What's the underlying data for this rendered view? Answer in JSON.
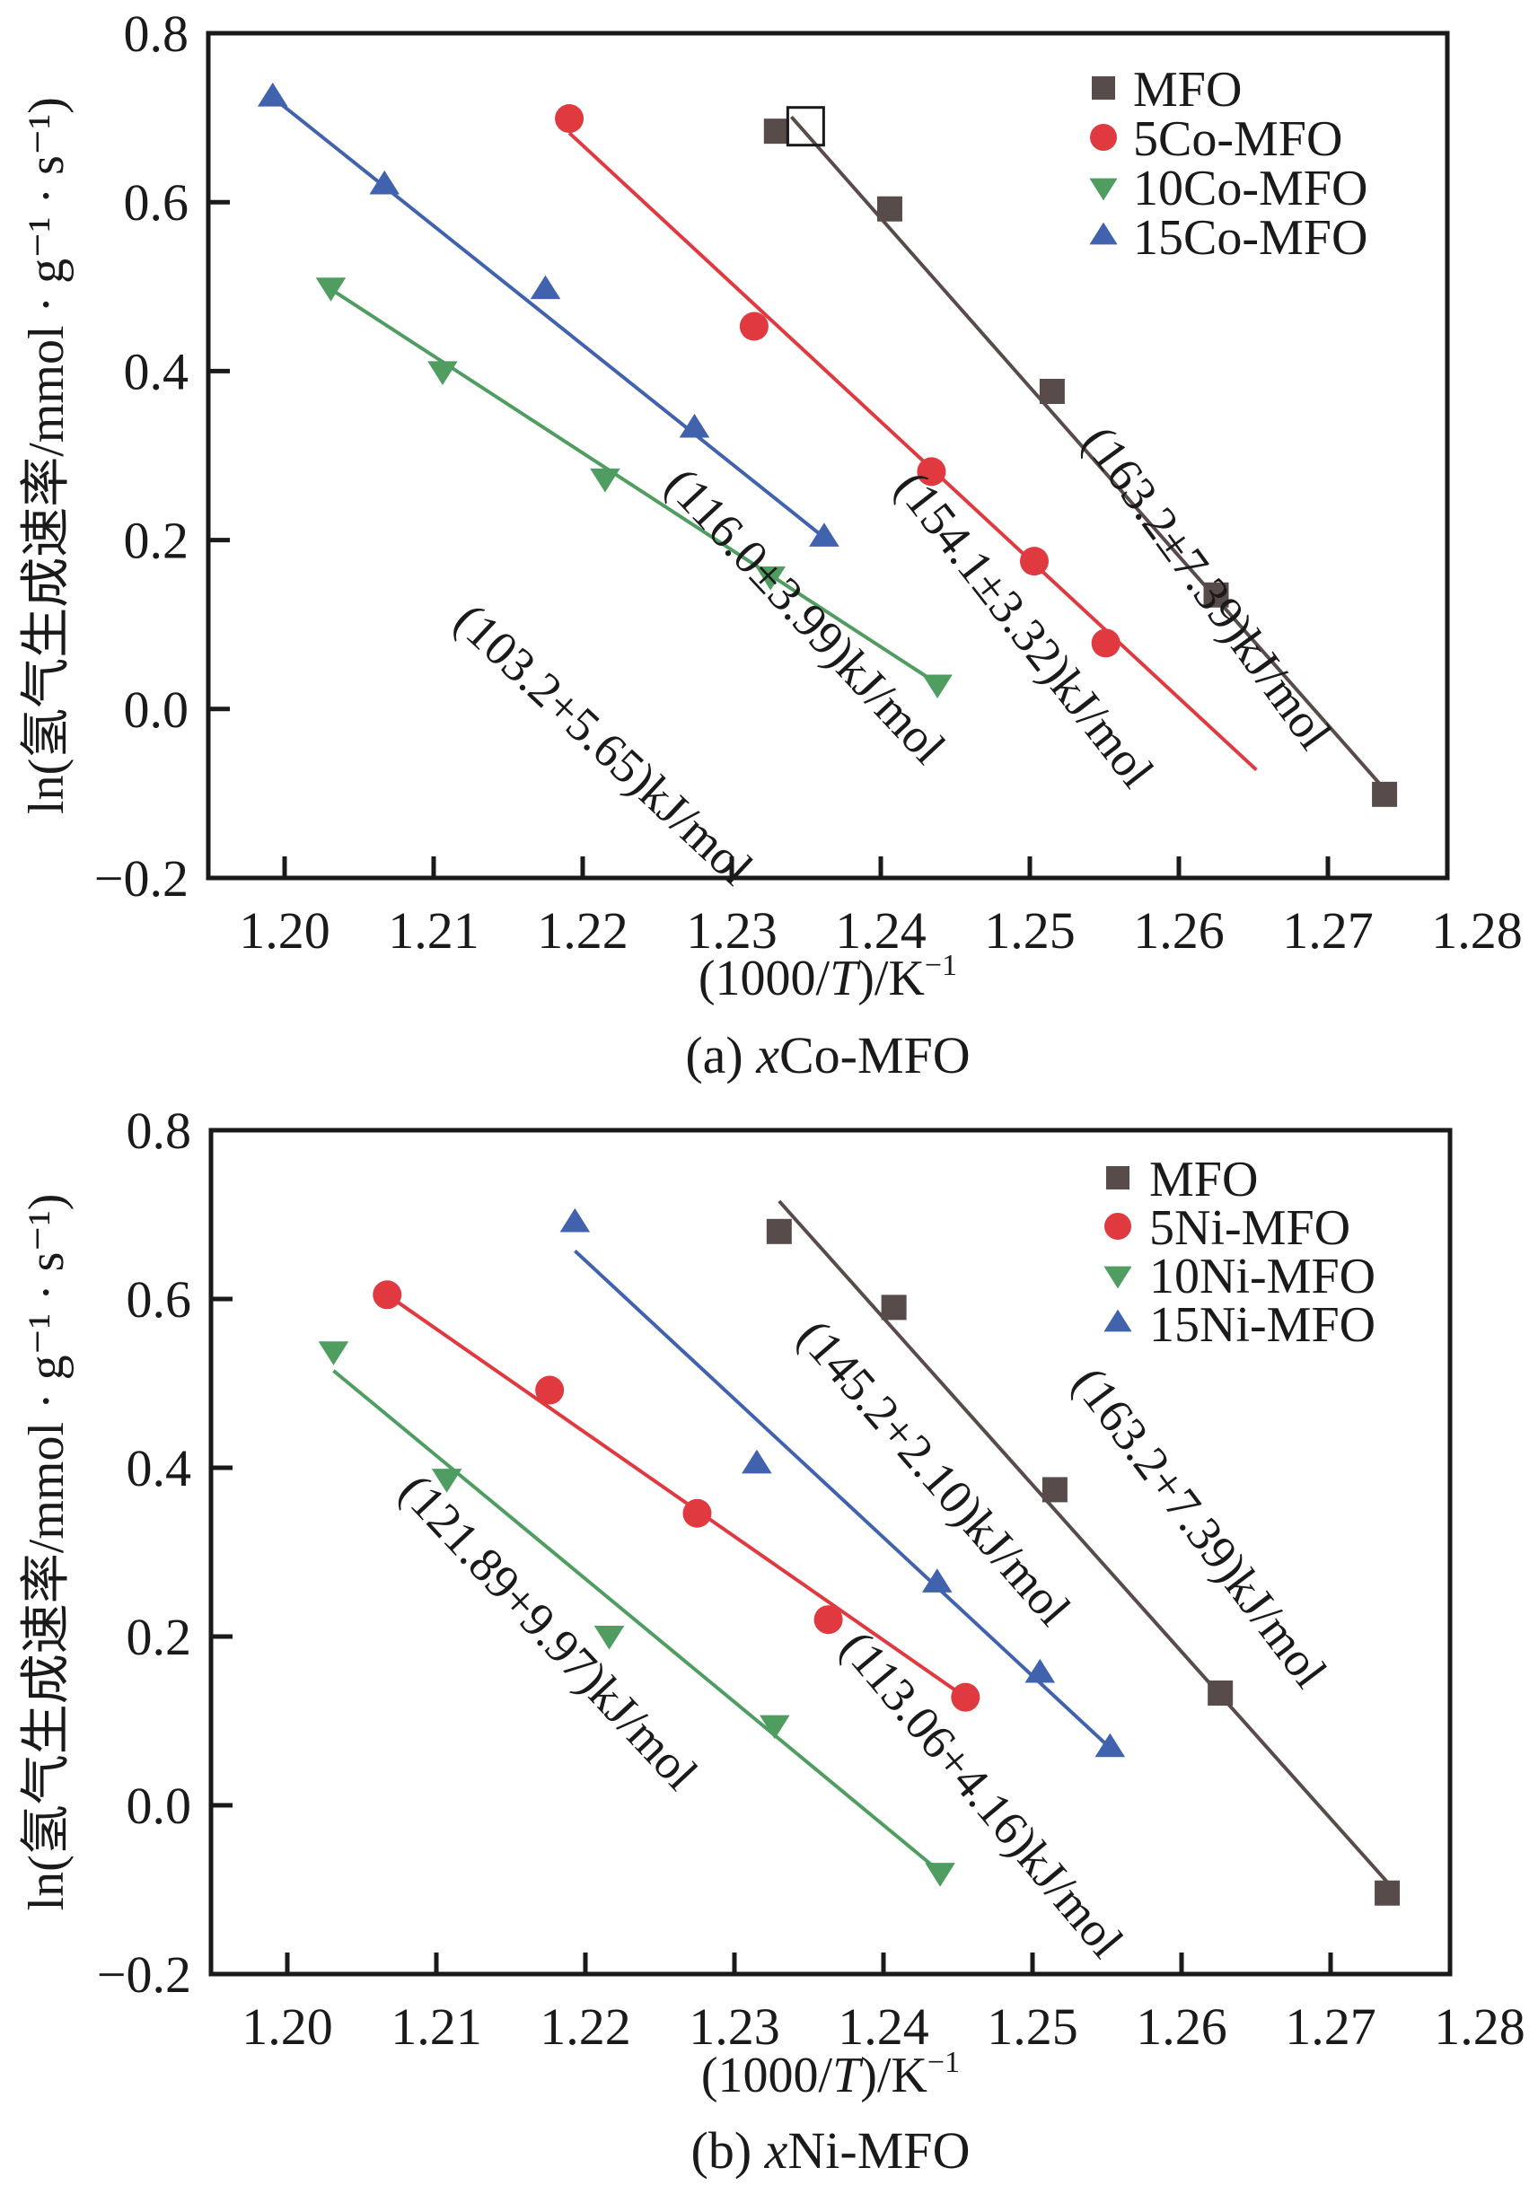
{
  "figure": {
    "colors": {
      "MFO": "#574c49",
      "red": "#e0393f",
      "green": "#4f9d61",
      "blue": "#4162ad",
      "axis": "#1a1a1a"
    }
  },
  "chart_data": [
    {
      "id": "a",
      "type": "scatter",
      "caption_prefix": "(a) ",
      "caption_italic": "x",
      "caption_suffix": "Co-MFO",
      "xlabel_parts": [
        "(1000/",
        "T",
        ")/K",
        "−1"
      ],
      "ylabel": "ln(氢气生成速率/mmol · g⁻¹ · s⁻¹)",
      "xlim": [
        1.1949,
        1.278
      ],
      "ylim": [
        -0.2,
        0.8
      ],
      "xticks": [
        "1.20",
        "1.21",
        "1.22",
        "1.23",
        "1.24",
        "1.25",
        "1.26",
        "1.27",
        "1.28"
      ],
      "yticks": [
        "−0.2",
        "0.0",
        "0.2",
        "0.4",
        "0.6",
        "0.8"
      ],
      "grid": false,
      "legend_position": "top-right",
      "series": [
        {
          "name": "MFO",
          "marker": "square",
          "color_key": "MFO",
          "x": [
            1.233,
            1.2406,
            1.2515,
            1.2625,
            1.2738
          ],
          "y": [
            0.684,
            0.592,
            0.376,
            0.135,
            -0.101
          ],
          "fit": {
            "x": [
              1.234,
              1.2735
            ],
            "y": [
              0.701,
              -0.089
            ]
          },
          "highlight_open_square": {
            "x": 1.2346,
            "y": 0.693
          },
          "annotation": "(163.2±7.39)kJ/mol"
        },
        {
          "name": "5Co-MFO",
          "marker": "circle",
          "color_key": "red",
          "x": [
            1.2191,
            1.2315,
            1.2434,
            1.2503,
            1.2551
          ],
          "y": [
            0.699,
            0.453,
            0.281,
            0.175,
            0.078
          ],
          "fit": {
            "x": [
              1.2191,
              1.2652
            ],
            "y": [
              0.682,
              -0.072
            ]
          },
          "annotation": "(154.1±3.32)kJ/mol"
        },
        {
          "name": "10Co-MFO",
          "marker": "triangle-down",
          "color_key": "green",
          "x": [
            1.2031,
            1.2106,
            1.2215,
            1.2326,
            1.2438
          ],
          "y": [
            0.5,
            0.401,
            0.274,
            0.158,
            0.03
          ],
          "fit": {
            "x": [
              1.2031,
              1.2438
            ],
            "y": [
              0.497,
              0.03
            ]
          },
          "annotation": "(103.2+5.65)kJ/mol"
        },
        {
          "name": "15Co-MFO",
          "marker": "triangle-up",
          "color_key": "blue",
          "x": [
            1.1992,
            1.2067,
            1.2175,
            1.2275,
            1.2362
          ],
          "y": [
            0.724,
            0.62,
            0.496,
            0.332,
            0.203
          ],
          "fit": {
            "x": [
              1.1992,
              1.2362
            ],
            "y": [
              0.724,
              0.203
            ]
          },
          "annotation": "(116.0±3.99)kJ/mol"
        }
      ]
    },
    {
      "id": "b",
      "type": "scatter",
      "caption_prefix": "(b) ",
      "caption_italic": "x",
      "caption_suffix": "Ni-MFO",
      "xlabel_parts": [
        "(1000/",
        "T",
        ")/K",
        "−1"
      ],
      "ylabel": "ln(氢气生成速率/mmol · g⁻¹ · s⁻¹)",
      "xlim": [
        1.1949,
        1.278
      ],
      "ylim": [
        -0.2,
        0.8
      ],
      "xticks": [
        "1.20",
        "1.21",
        "1.22",
        "1.23",
        "1.24",
        "1.25",
        "1.26",
        "1.27",
        "1.28"
      ],
      "yticks": [
        "−0.2",
        "0.0",
        "0.2",
        "0.4",
        "0.6",
        "0.8"
      ],
      "grid": false,
      "legend_position": "top-right",
      "series": [
        {
          "name": "MFO",
          "marker": "square",
          "color_key": "MFO",
          "x": [
            1.233,
            1.2407,
            1.2515,
            1.2626,
            1.2738
          ],
          "y": [
            0.68,
            0.59,
            0.374,
            0.133,
            -0.104
          ],
          "fit": {
            "x": [
              1.233,
              1.2738
            ],
            "y": [
              0.716,
              -0.091
            ]
          },
          "annotation": "(163.2+7.39)kJ/mol"
        },
        {
          "name": "5Ni-MFO",
          "marker": "circle",
          "color_key": "red",
          "x": [
            1.2067,
            1.2176,
            1.2275,
            1.2363,
            1.2455
          ],
          "y": [
            0.605,
            0.492,
            0.346,
            0.22,
            0.128
          ],
          "fit": {
            "x": [
              1.2067,
              1.2455
            ],
            "y": [
              0.605,
              0.128
            ]
          },
          "annotation": "(113.06+4.16)kJ/mol"
        },
        {
          "name": "10Ni-MFO",
          "marker": "triangle-down",
          "color_key": "green",
          "x": [
            1.2031,
            1.2107,
            1.2216,
            1.2327,
            1.2438
          ],
          "y": [
            0.539,
            0.388,
            0.202,
            0.096,
            -0.079
          ],
          "fit": {
            "x": [
              1.2031,
              1.2438
            ],
            "y": [
              0.515,
              -0.079
            ]
          },
          "annotation": "(121.89+9.97)kJ/mol"
        },
        {
          "name": "15Ni-MFO",
          "marker": "triangle-up",
          "color_key": "blue",
          "x": [
            1.2193,
            1.2315,
            1.2436,
            1.2505,
            1.2552
          ],
          "y": [
            0.69,
            0.404,
            0.263,
            0.156,
            0.068
          ],
          "fit": {
            "x": [
              1.2193,
              1.2552
            ],
            "y": [
              0.657,
              0.068
            ]
          },
          "annotation": "(145.2+2.10)kJ/mol"
        }
      ]
    }
  ]
}
